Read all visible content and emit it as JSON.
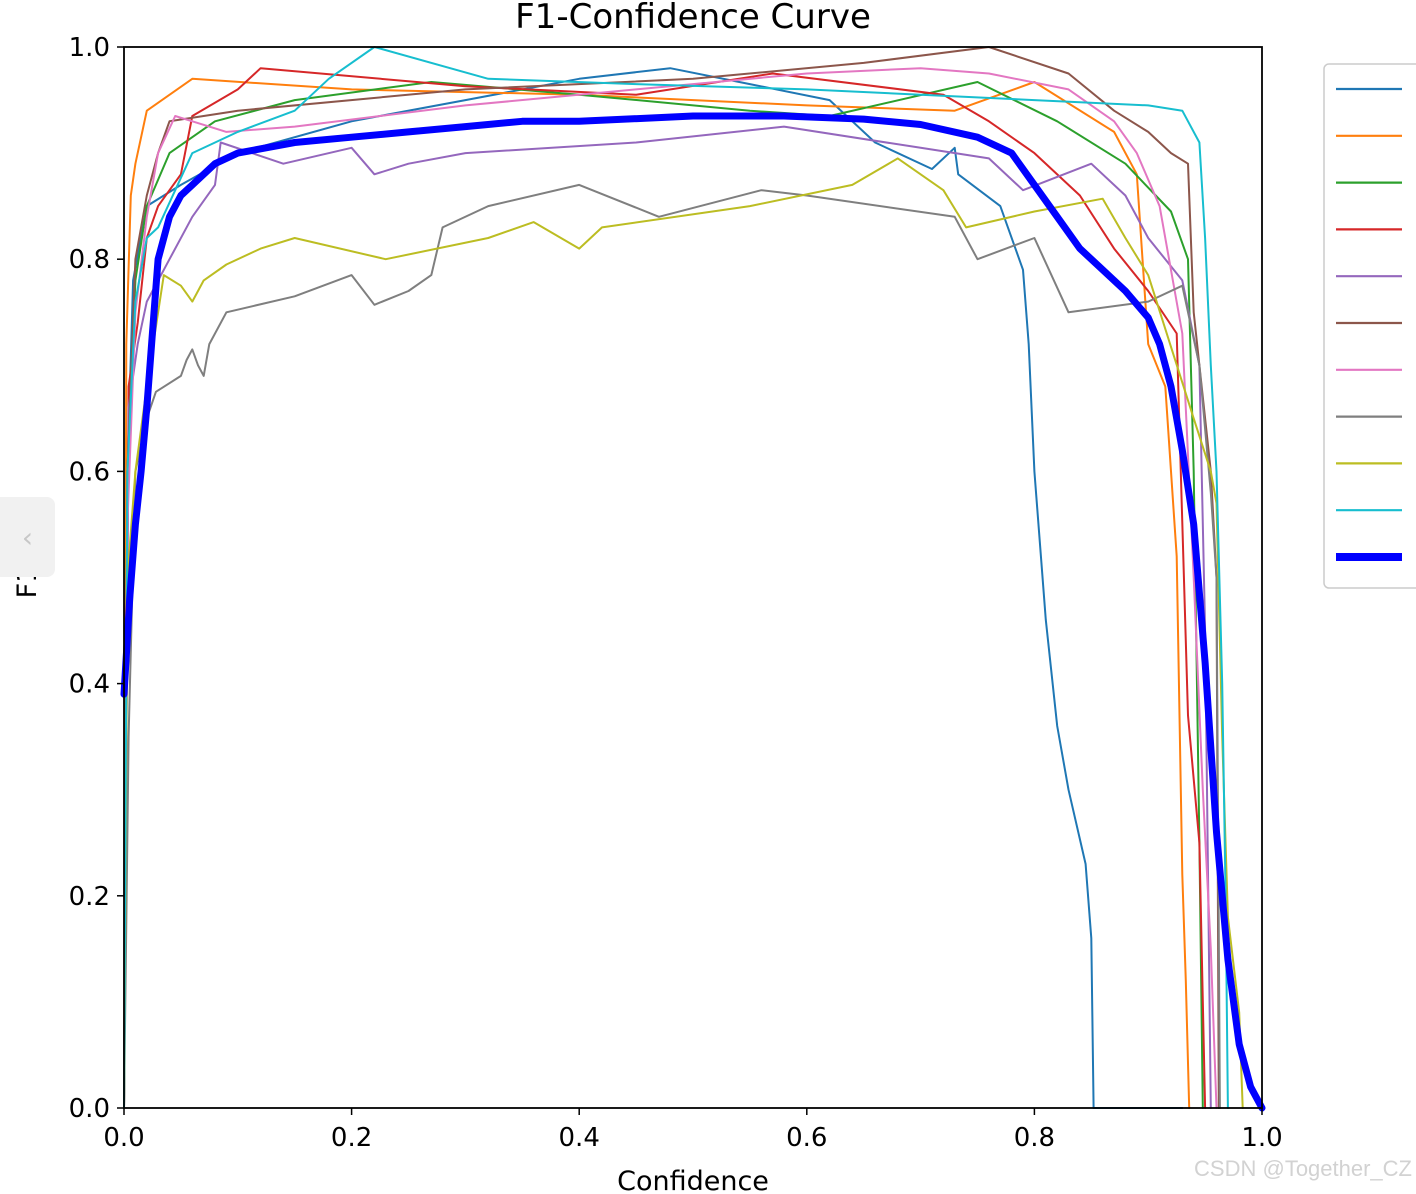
{
  "chart_data": {
    "type": "line",
    "title": "F1-Confidence Curve",
    "xlabel": "Confidence",
    "ylabel": "F1",
    "xlim": [
      0.0,
      1.0
    ],
    "ylim": [
      0.0,
      1.0
    ],
    "xticks": [
      "0.0",
      "0.2",
      "0.4",
      "0.6",
      "0.8",
      "1.0"
    ],
    "yticks": [
      "0.0",
      "0.2",
      "0.4",
      "0.6",
      "0.8",
      "1.0"
    ],
    "grid": false,
    "legend": "outside-right (entries unlabeled)",
    "series": [
      {
        "color": "#1f77b4",
        "width": 2,
        "points": [
          [
            0.0,
            0.0
          ],
          [
            0.003,
            0.6
          ],
          [
            0.008,
            0.78
          ],
          [
            0.02,
            0.85
          ],
          [
            0.05,
            0.87
          ],
          [
            0.1,
            0.9
          ],
          [
            0.2,
            0.93
          ],
          [
            0.3,
            0.95
          ],
          [
            0.4,
            0.97
          ],
          [
            0.48,
            0.98
          ],
          [
            0.55,
            0.965
          ],
          [
            0.62,
            0.95
          ],
          [
            0.66,
            0.91
          ],
          [
            0.71,
            0.885
          ],
          [
            0.73,
            0.905
          ],
          [
            0.733,
            0.88
          ],
          [
            0.77,
            0.85
          ],
          [
            0.79,
            0.79
          ],
          [
            0.795,
            0.72
          ],
          [
            0.8,
            0.6
          ],
          [
            0.81,
            0.46
          ],
          [
            0.82,
            0.36
          ],
          [
            0.83,
            0.3
          ],
          [
            0.845,
            0.23
          ],
          [
            0.85,
            0.16
          ],
          [
            0.852,
            0.0
          ],
          [
            0.93,
            0.0
          ]
        ]
      },
      {
        "color": "#ff7f0e",
        "width": 2,
        "points": [
          [
            0.0,
            0.0
          ],
          [
            0.002,
            0.72
          ],
          [
            0.006,
            0.86
          ],
          [
            0.01,
            0.89
          ],
          [
            0.02,
            0.94
          ],
          [
            0.06,
            0.97
          ],
          [
            0.2,
            0.96
          ],
          [
            0.4,
            0.955
          ],
          [
            0.6,
            0.945
          ],
          [
            0.73,
            0.94
          ],
          [
            0.8,
            0.967
          ],
          [
            0.87,
            0.92
          ],
          [
            0.89,
            0.88
          ],
          [
            0.9,
            0.72
          ],
          [
            0.915,
            0.68
          ],
          [
            0.925,
            0.52
          ],
          [
            0.93,
            0.22
          ],
          [
            0.933,
            0.12
          ],
          [
            0.936,
            0.0
          ]
        ]
      },
      {
        "color": "#2ca02c",
        "width": 2,
        "points": [
          [
            0.0,
            0.0
          ],
          [
            0.003,
            0.6
          ],
          [
            0.01,
            0.78
          ],
          [
            0.02,
            0.85
          ],
          [
            0.04,
            0.9
          ],
          [
            0.08,
            0.93
          ],
          [
            0.15,
            0.95
          ],
          [
            0.27,
            0.967
          ],
          [
            0.4,
            0.955
          ],
          [
            0.55,
            0.94
          ],
          [
            0.62,
            0.935
          ],
          [
            0.75,
            0.967
          ],
          [
            0.82,
            0.93
          ],
          [
            0.88,
            0.89
          ],
          [
            0.92,
            0.845
          ],
          [
            0.935,
            0.8
          ],
          [
            0.94,
            0.6
          ],
          [
            0.945,
            0.25
          ],
          [
            0.948,
            0.0
          ]
        ]
      },
      {
        "color": "#d62728",
        "width": 2,
        "points": [
          [
            0.0,
            0.0
          ],
          [
            0.004,
            0.68
          ],
          [
            0.012,
            0.74
          ],
          [
            0.02,
            0.82
          ],
          [
            0.03,
            0.85
          ],
          [
            0.05,
            0.88
          ],
          [
            0.06,
            0.935
          ],
          [
            0.1,
            0.96
          ],
          [
            0.12,
            0.98
          ],
          [
            0.3,
            0.963
          ],
          [
            0.45,
            0.955
          ],
          [
            0.57,
            0.975
          ],
          [
            0.72,
            0.955
          ],
          [
            0.76,
            0.93
          ],
          [
            0.8,
            0.9
          ],
          [
            0.84,
            0.86
          ],
          [
            0.87,
            0.81
          ],
          [
            0.9,
            0.77
          ],
          [
            0.925,
            0.73
          ],
          [
            0.935,
            0.37
          ],
          [
            0.945,
            0.25
          ],
          [
            0.95,
            0.0
          ]
        ]
      },
      {
        "color": "#9467bd",
        "width": 2,
        "points": [
          [
            0.0,
            0.0
          ],
          [
            0.004,
            0.66
          ],
          [
            0.012,
            0.72
          ],
          [
            0.02,
            0.76
          ],
          [
            0.04,
            0.8
          ],
          [
            0.06,
            0.84
          ],
          [
            0.08,
            0.87
          ],
          [
            0.085,
            0.91
          ],
          [
            0.14,
            0.89
          ],
          [
            0.2,
            0.905
          ],
          [
            0.22,
            0.88
          ],
          [
            0.25,
            0.89
          ],
          [
            0.3,
            0.9
          ],
          [
            0.45,
            0.91
          ],
          [
            0.58,
            0.925
          ],
          [
            0.7,
            0.905
          ],
          [
            0.76,
            0.895
          ],
          [
            0.79,
            0.865
          ],
          [
            0.85,
            0.89
          ],
          [
            0.88,
            0.86
          ],
          [
            0.9,
            0.82
          ],
          [
            0.93,
            0.78
          ],
          [
            0.945,
            0.7
          ],
          [
            0.95,
            0.45
          ],
          [
            0.955,
            0.0
          ]
        ]
      },
      {
        "color": "#8c564b",
        "width": 2,
        "points": [
          [
            0.0,
            0.0
          ],
          [
            0.003,
            0.6
          ],
          [
            0.01,
            0.8
          ],
          [
            0.02,
            0.86
          ],
          [
            0.03,
            0.9
          ],
          [
            0.04,
            0.93
          ],
          [
            0.1,
            0.94
          ],
          [
            0.3,
            0.96
          ],
          [
            0.5,
            0.97
          ],
          [
            0.65,
            0.985
          ],
          [
            0.76,
            1.0
          ],
          [
            0.83,
            0.975
          ],
          [
            0.87,
            0.94
          ],
          [
            0.9,
            0.92
          ],
          [
            0.92,
            0.9
          ],
          [
            0.935,
            0.89
          ],
          [
            0.94,
            0.75
          ],
          [
            0.955,
            0.6
          ],
          [
            0.96,
            0.5
          ],
          [
            0.962,
            0.0
          ]
        ]
      },
      {
        "color": "#e377c2",
        "width": 2,
        "points": [
          [
            0.0,
            0.0
          ],
          [
            0.003,
            0.55
          ],
          [
            0.01,
            0.75
          ],
          [
            0.02,
            0.84
          ],
          [
            0.03,
            0.9
          ],
          [
            0.045,
            0.935
          ],
          [
            0.06,
            0.93
          ],
          [
            0.09,
            0.92
          ],
          [
            0.15,
            0.925
          ],
          [
            0.3,
            0.945
          ],
          [
            0.45,
            0.96
          ],
          [
            0.6,
            0.975
          ],
          [
            0.7,
            0.98
          ],
          [
            0.76,
            0.975
          ],
          [
            0.83,
            0.96
          ],
          [
            0.87,
            0.93
          ],
          [
            0.89,
            0.9
          ],
          [
            0.91,
            0.85
          ],
          [
            0.93,
            0.73
          ],
          [
            0.94,
            0.5
          ],
          [
            0.948,
            0.3
          ],
          [
            0.955,
            0.15
          ],
          [
            0.96,
            0.0
          ]
        ]
      },
      {
        "color": "#7f7f7f",
        "width": 2,
        "points": [
          [
            0.0,
            0.0
          ],
          [
            0.004,
            0.35
          ],
          [
            0.01,
            0.6
          ],
          [
            0.02,
            0.65
          ],
          [
            0.028,
            0.675
          ],
          [
            0.05,
            0.69
          ],
          [
            0.055,
            0.705
          ],
          [
            0.06,
            0.715
          ],
          [
            0.065,
            0.7
          ],
          [
            0.07,
            0.69
          ],
          [
            0.075,
            0.72
          ],
          [
            0.09,
            0.75
          ],
          [
            0.15,
            0.765
          ],
          [
            0.2,
            0.785
          ],
          [
            0.22,
            0.757
          ],
          [
            0.25,
            0.77
          ],
          [
            0.27,
            0.785
          ],
          [
            0.28,
            0.83
          ],
          [
            0.32,
            0.85
          ],
          [
            0.4,
            0.87
          ],
          [
            0.47,
            0.84
          ],
          [
            0.56,
            0.865
          ],
          [
            0.6,
            0.86
          ],
          [
            0.73,
            0.84
          ],
          [
            0.75,
            0.8
          ],
          [
            0.8,
            0.82
          ],
          [
            0.83,
            0.75
          ],
          [
            0.9,
            0.76
          ],
          [
            0.93,
            0.775
          ],
          [
            0.945,
            0.7
          ],
          [
            0.955,
            0.58
          ],
          [
            0.96,
            0.5
          ],
          [
            0.963,
            0.0
          ]
        ]
      },
      {
        "color": "#bcbd22",
        "width": 2,
        "points": [
          [
            0.0,
            0.0
          ],
          [
            0.003,
            0.5
          ],
          [
            0.01,
            0.6
          ],
          [
            0.02,
            0.68
          ],
          [
            0.035,
            0.785
          ],
          [
            0.05,
            0.775
          ],
          [
            0.06,
            0.76
          ],
          [
            0.07,
            0.78
          ],
          [
            0.09,
            0.795
          ],
          [
            0.12,
            0.81
          ],
          [
            0.15,
            0.82
          ],
          [
            0.23,
            0.8
          ],
          [
            0.32,
            0.82
          ],
          [
            0.36,
            0.835
          ],
          [
            0.4,
            0.81
          ],
          [
            0.42,
            0.83
          ],
          [
            0.55,
            0.85
          ],
          [
            0.64,
            0.87
          ],
          [
            0.68,
            0.895
          ],
          [
            0.72,
            0.865
          ],
          [
            0.74,
            0.83
          ],
          [
            0.8,
            0.845
          ],
          [
            0.86,
            0.857
          ],
          [
            0.88,
            0.82
          ],
          [
            0.9,
            0.785
          ],
          [
            0.94,
            0.65
          ],
          [
            0.955,
            0.6
          ],
          [
            0.96,
            0.57
          ],
          [
            0.965,
            0.35
          ],
          [
            0.97,
            0.18
          ],
          [
            0.98,
            0.09
          ],
          [
            0.983,
            0.0
          ]
        ]
      },
      {
        "color": "#17becf",
        "width": 2,
        "points": [
          [
            0.0,
            0.0
          ],
          [
            0.003,
            0.6
          ],
          [
            0.01,
            0.76
          ],
          [
            0.02,
            0.82
          ],
          [
            0.03,
            0.83
          ],
          [
            0.06,
            0.9
          ],
          [
            0.1,
            0.92
          ],
          [
            0.15,
            0.94
          ],
          [
            0.18,
            0.97
          ],
          [
            0.22,
            1.0
          ],
          [
            0.32,
            0.97
          ],
          [
            0.45,
            0.965
          ],
          [
            0.6,
            0.96
          ],
          [
            0.7,
            0.955
          ],
          [
            0.8,
            0.95
          ],
          [
            0.9,
            0.945
          ],
          [
            0.93,
            0.94
          ],
          [
            0.945,
            0.91
          ],
          [
            0.95,
            0.82
          ],
          [
            0.955,
            0.7
          ],
          [
            0.96,
            0.6
          ],
          [
            0.965,
            0.4
          ],
          [
            0.968,
            0.2
          ],
          [
            0.97,
            0.0
          ]
        ]
      },
      {
        "color": "#0000ff",
        "width": 7,
        "points": [
          [
            0.0,
            0.39
          ],
          [
            0.005,
            0.48
          ],
          [
            0.01,
            0.55
          ],
          [
            0.015,
            0.6
          ],
          [
            0.02,
            0.66
          ],
          [
            0.025,
            0.73
          ],
          [
            0.03,
            0.8
          ],
          [
            0.04,
            0.84
          ],
          [
            0.05,
            0.86
          ],
          [
            0.06,
            0.87
          ],
          [
            0.08,
            0.89
          ],
          [
            0.1,
            0.9
          ],
          [
            0.15,
            0.91
          ],
          [
            0.2,
            0.915
          ],
          [
            0.25,
            0.92
          ],
          [
            0.3,
            0.925
          ],
          [
            0.35,
            0.93
          ],
          [
            0.4,
            0.93
          ],
          [
            0.5,
            0.935
          ],
          [
            0.58,
            0.935
          ],
          [
            0.65,
            0.932
          ],
          [
            0.7,
            0.927
          ],
          [
            0.75,
            0.915
          ],
          [
            0.78,
            0.9
          ],
          [
            0.8,
            0.87
          ],
          [
            0.82,
            0.84
          ],
          [
            0.84,
            0.81
          ],
          [
            0.86,
            0.79
          ],
          [
            0.88,
            0.77
          ],
          [
            0.9,
            0.745
          ],
          [
            0.91,
            0.72
          ],
          [
            0.92,
            0.68
          ],
          [
            0.93,
            0.62
          ],
          [
            0.94,
            0.55
          ],
          [
            0.95,
            0.42
          ],
          [
            0.96,
            0.26
          ],
          [
            0.97,
            0.14
          ],
          [
            0.98,
            0.06
          ],
          [
            0.99,
            0.02
          ],
          [
            1.0,
            0.0
          ]
        ]
      }
    ]
  },
  "ui": {
    "side_tab_glyph": "‹",
    "watermark": "CSDN @Together_CZ"
  }
}
